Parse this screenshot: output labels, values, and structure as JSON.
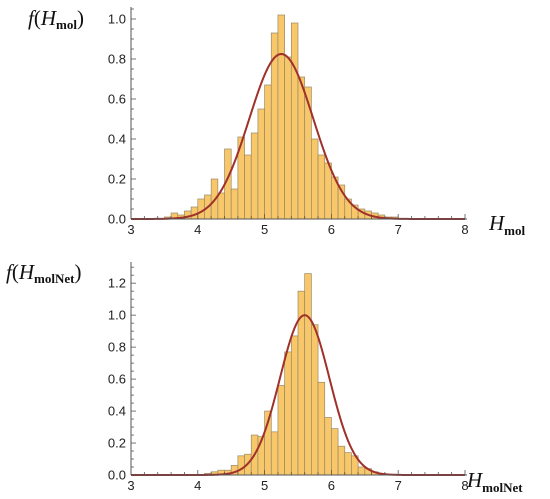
{
  "colors": {
    "bar_fill": "#f7c76a",
    "bar_stroke": "#9a8a66",
    "curve": "#a0302a",
    "axis": "#555555"
  },
  "chart_data": [
    {
      "type": "bar",
      "subtype": "histogram with fitted normal curve",
      "ylabel": {
        "prefix": "f(",
        "var": "H",
        "sub": "mol",
        "suffix": ")"
      },
      "xlabel": {
        "var": "H",
        "sub": "mol"
      },
      "xlim": [
        3,
        8
      ],
      "ylim": [
        0,
        1.05
      ],
      "x_ticks": [
        3,
        4,
        5,
        6,
        7,
        8
      ],
      "y_ticks": [
        0.0,
        0.2,
        0.4,
        0.6,
        0.8,
        1.0
      ],
      "bin_width": 0.1,
      "bins_start": [
        3.5,
        3.6,
        3.7,
        3.8,
        3.9,
        4.0,
        4.1,
        4.2,
        4.3,
        4.4,
        4.5,
        4.6,
        4.7,
        4.8,
        4.9,
        5.0,
        5.1,
        5.2,
        5.3,
        5.4,
        5.5,
        5.6,
        5.7,
        5.8,
        5.9,
        6.0,
        6.1,
        6.2,
        6.3,
        6.4,
        6.5,
        6.6,
        6.7,
        6.8,
        6.9
      ],
      "values": [
        0.01,
        0.03,
        0.02,
        0.04,
        0.06,
        0.1,
        0.12,
        0.2,
        0.13,
        0.35,
        0.15,
        0.41,
        0.32,
        0.43,
        0.55,
        0.67,
        0.93,
        1.02,
        0.81,
        0.98,
        0.71,
        0.66,
        0.4,
        0.32,
        0.28,
        0.21,
        0.17,
        0.1,
        0.07,
        0.05,
        0.04,
        0.03,
        0.02,
        0.01,
        0.01
      ],
      "fit_curve": {
        "type": "normal",
        "mean": 5.25,
        "peak": 0.825,
        "sd": 0.48
      },
      "grid": false
    },
    {
      "type": "bar",
      "subtype": "histogram with fitted normal curve",
      "ylabel": {
        "prefix": "f(",
        "var": "H",
        "sub": "molNet",
        "suffix": ")"
      },
      "xlabel": {
        "var": "H",
        "sub": "molNet"
      },
      "xlim": [
        3,
        8
      ],
      "ylim": [
        0,
        1.32
      ],
      "x_ticks": [
        3,
        4,
        5,
        6,
        7,
        8
      ],
      "y_ticks": [
        0.0,
        0.2,
        0.4,
        0.6,
        0.8,
        1.0,
        1.2
      ],
      "bin_width": 0.1,
      "bins_start": [
        4.1,
        4.2,
        4.3,
        4.4,
        4.5,
        4.6,
        4.7,
        4.8,
        4.9,
        5.0,
        5.1,
        5.2,
        5.3,
        5.4,
        5.5,
        5.6,
        5.7,
        5.8,
        5.9,
        6.0,
        6.1,
        6.2,
        6.3,
        6.4,
        6.5,
        6.6,
        6.7
      ],
      "values": [
        0.01,
        0.02,
        0.03,
        0.03,
        0.06,
        0.12,
        0.13,
        0.25,
        0.24,
        0.4,
        0.27,
        0.56,
        0.77,
        0.87,
        1.15,
        1.26,
        0.94,
        0.58,
        0.36,
        0.29,
        0.18,
        0.14,
        0.12,
        0.05,
        0.04,
        0.02,
        0.01
      ],
      "fit_curve": {
        "type": "normal",
        "mean": 5.6,
        "peak": 1.0,
        "sd": 0.37
      },
      "grid": false
    }
  ]
}
